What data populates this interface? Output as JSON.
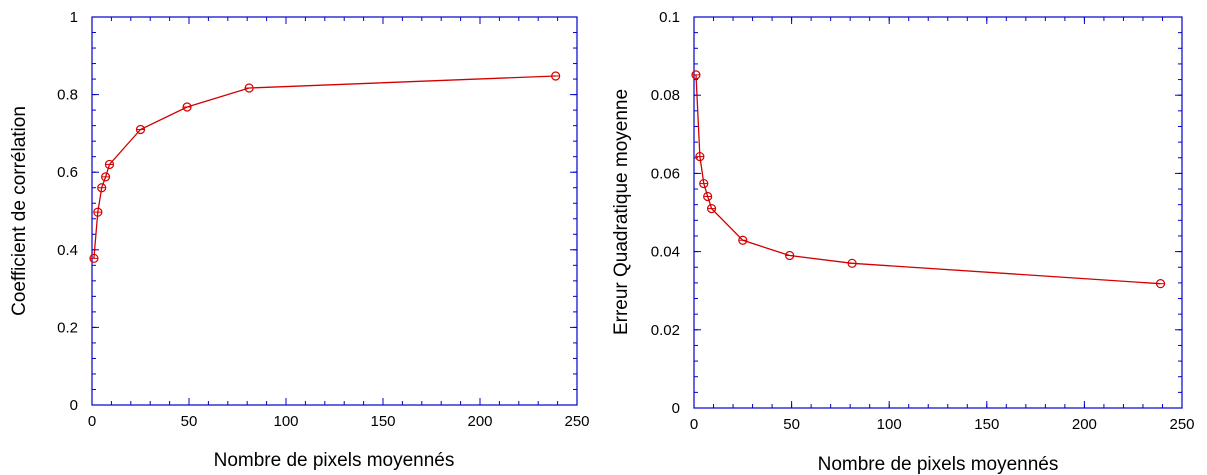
{
  "colors": {
    "series": "#d40000",
    "axes": "#0000cc",
    "text": "#000000"
  },
  "chart_data": [
    {
      "type": "line",
      "marker": "circle-open",
      "xlabel": "Nombre de pixels moyennés",
      "ylabel": "Coefficient de corrélation",
      "xlim": [
        0,
        250
      ],
      "ylim": [
        0,
        1
      ],
      "xticks": [
        0,
        50,
        100,
        150,
        200,
        250
      ],
      "yticks": [
        0,
        0.2,
        0.4,
        0.6,
        0.8,
        1
      ],
      "xtick_labels": [
        "0",
        "50",
        "100",
        "150",
        "200",
        "250"
      ],
      "ytick_labels": [
        "0",
        "0.2",
        "0.4",
        "0.6",
        "0.8",
        "1"
      ],
      "grid": false,
      "series": [
        {
          "x": [
            1,
            3,
            5,
            7,
            9,
            25,
            49,
            81,
            239
          ],
          "y": [
            0.378,
            0.497,
            0.56,
            0.588,
            0.62,
            0.71,
            0.768,
            0.817,
            0.848
          ]
        }
      ]
    },
    {
      "type": "line",
      "marker": "circle-open",
      "xlabel": "Nombre de pixels moyennés",
      "ylabel": "Erreur Quadratique moyenne",
      "xlim": [
        0,
        250
      ],
      "ylim": [
        0,
        0.1
      ],
      "xticks": [
        0,
        50,
        100,
        150,
        200,
        250
      ],
      "yticks": [
        0,
        0.02,
        0.04,
        0.06,
        0.08,
        0.1
      ],
      "xtick_labels": [
        "0",
        "50",
        "100",
        "150",
        "200",
        "250"
      ],
      "ytick_labels": [
        "0",
        "0.02",
        "0.04",
        "0.06",
        "0.08",
        "0.1"
      ],
      "grid": false,
      "series": [
        {
          "x": [
            1,
            3,
            5,
            7,
            9,
            25,
            49,
            81,
            239
          ],
          "y": [
            0.0852,
            0.0643,
            0.0574,
            0.0541,
            0.051,
            0.0429,
            0.039,
            0.037,
            0.0318
          ]
        }
      ]
    }
  ]
}
